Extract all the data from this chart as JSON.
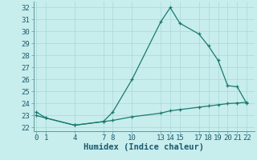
{
  "line1_x": [
    0,
    1,
    4,
    7,
    8,
    10,
    13,
    14,
    15,
    17,
    18,
    19,
    20,
    21,
    22
  ],
  "line1_y": [
    23.3,
    22.8,
    22.2,
    22.5,
    23.3,
    26.0,
    30.8,
    32.0,
    30.7,
    29.8,
    28.8,
    27.6,
    25.5,
    25.4,
    24.0
  ],
  "line2_x": [
    0,
    1,
    4,
    7,
    8,
    10,
    13,
    14,
    15,
    17,
    18,
    19,
    20,
    21,
    22
  ],
  "line2_y": [
    23.0,
    22.8,
    22.2,
    22.5,
    22.6,
    22.9,
    23.2,
    23.4,
    23.5,
    23.7,
    23.8,
    23.9,
    24.0,
    24.05,
    24.1
  ],
  "line_color": "#1a7a6e",
  "bg_color": "#c8eded",
  "grid_color": "#a8d8d8",
  "xlabel": "Humidex (Indice chaleur)",
  "xticks": [
    0,
    1,
    4,
    7,
    8,
    10,
    13,
    14,
    15,
    17,
    18,
    19,
    20,
    21,
    22
  ],
  "yticks": [
    22,
    23,
    24,
    25,
    26,
    27,
    28,
    29,
    30,
    31,
    32
  ],
  "xlim": [
    -0.3,
    22.8
  ],
  "ylim": [
    21.7,
    32.5
  ],
  "xlabel_fontsize": 7.5,
  "tick_fontsize": 6.5
}
